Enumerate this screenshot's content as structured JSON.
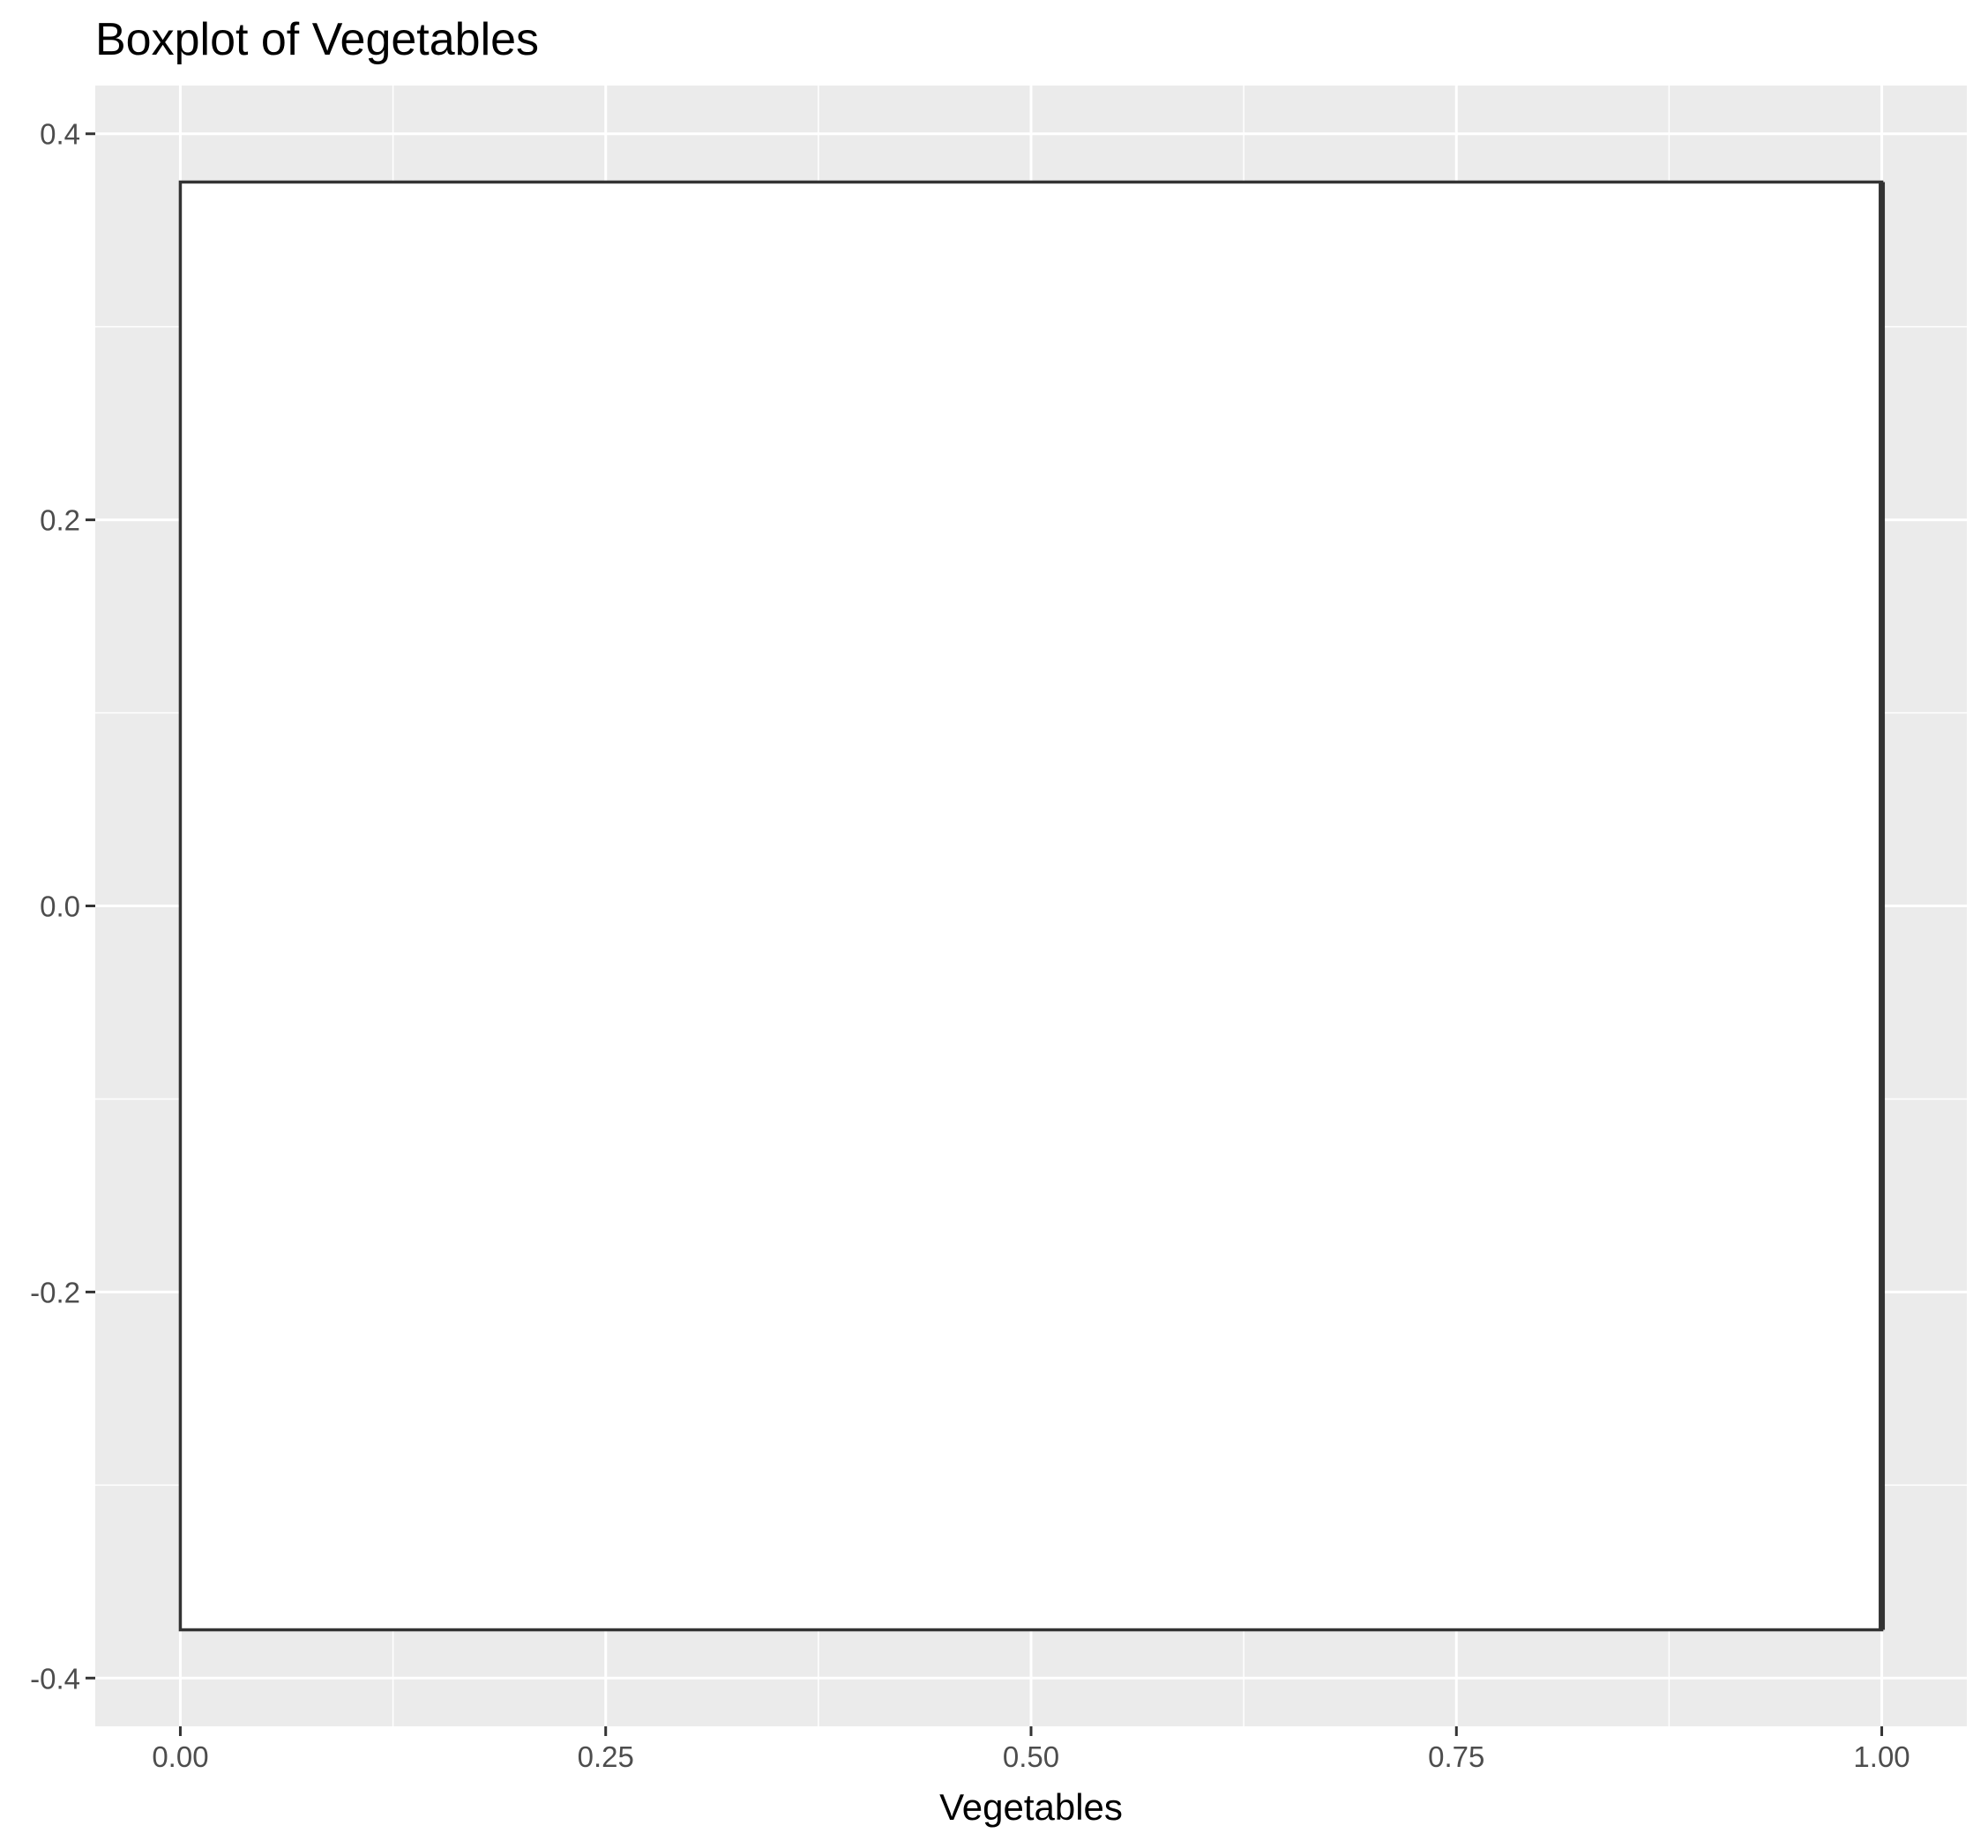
{
  "chart_data": {
    "type": "boxplot",
    "title": "Boxplot of Vegetables",
    "xlabel": "Vegetables",
    "ylabel": "",
    "xlim": [
      -0.05,
      1.05
    ],
    "ylim": [
      -0.425,
      0.425
    ],
    "x_ticks": [
      0.0,
      0.25,
      0.5,
      0.75,
      1.0
    ],
    "x_tick_labels": [
      "0.00",
      "0.25",
      "0.50",
      "0.75",
      "1.00"
    ],
    "y_ticks": [
      -0.4,
      -0.2,
      0.0,
      0.2,
      0.4
    ],
    "y_tick_labels": [
      "-0.4",
      "-0.2",
      "0.0",
      "0.2",
      "0.4"
    ],
    "grid": true,
    "box": {
      "lower_hinge": 0.0,
      "median": 1.0,
      "upper_hinge": 1.0,
      "ymin": -0.375,
      "ymax": 0.375
    },
    "colors": {
      "panel_background": "#ebebeb",
      "grid": "#ffffff",
      "box_fill": "#ffffff",
      "box_outline": "#333333"
    }
  }
}
